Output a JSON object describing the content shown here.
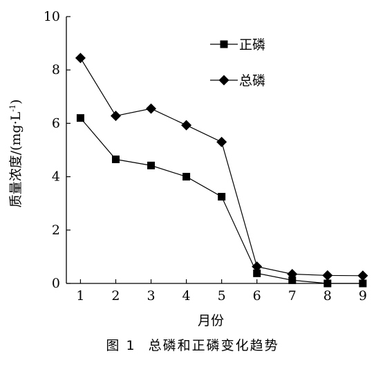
{
  "chart_data": {
    "type": "line",
    "xlabel": "月份",
    "ylabel_main": "质量浓度/(mg·L",
    "ylabel_exp": "-1",
    "ylabel_close": ")",
    "x": [
      1,
      2,
      3,
      4,
      5,
      6,
      7,
      8,
      9
    ],
    "xlim": [
      0.6,
      9.1
    ],
    "ylim": [
      0,
      10
    ],
    "yticks": [
      0,
      2,
      4,
      6,
      8,
      10
    ],
    "series": [
      {
        "name": "正磷",
        "marker": "square",
        "values": [
          6.2,
          4.65,
          4.42,
          4.0,
          3.25,
          0.38,
          0.12,
          0.0,
          0.0
        ]
      },
      {
        "name": "总磷",
        "marker": "diamond",
        "values": [
          8.45,
          6.28,
          6.55,
          5.93,
          5.3,
          0.63,
          0.35,
          0.3,
          0.29
        ]
      }
    ],
    "legend_position": "top-right",
    "grid": false
  },
  "caption": {
    "number": "图 1",
    "text": "总磷和正磷变化趋势"
  }
}
